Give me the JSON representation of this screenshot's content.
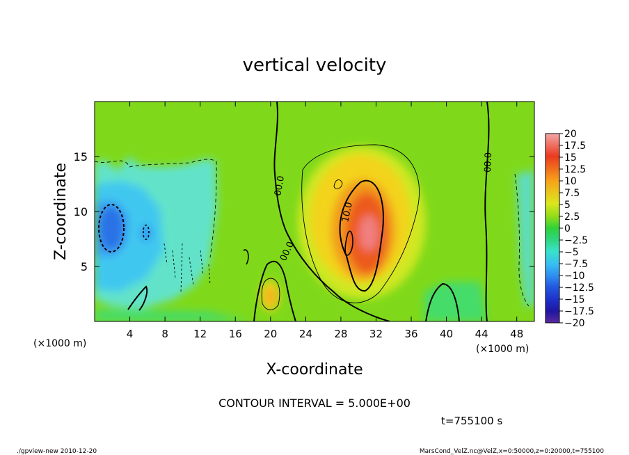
{
  "chart_data": {
    "type": "heatmap",
    "title": "vertical velocity",
    "xlabel": "X-coordinate",
    "ylabel": "Z-coordinate",
    "x_unit_left": "(×1000 m)",
    "x_unit_right": "(×1000 m)",
    "xlim": [
      0,
      50
    ],
    "ylim": [
      0,
      20
    ],
    "x_ticks": [
      4,
      8,
      12,
      16,
      20,
      24,
      28,
      32,
      36,
      40,
      44,
      48
    ],
    "y_ticks": [
      5,
      10,
      15
    ],
    "contour_interval_text": "CONTOUR INTERVAL = 5.000E+00",
    "time_text": "t=755100 s",
    "colorbar": {
      "levels": [
        "20",
        "17.5",
        "15",
        "12.5",
        "10",
        "7.5",
        "5",
        "2.5",
        "0",
        "−2.5",
        "−5",
        "−7.5",
        "−10",
        "−12.5",
        "−15",
        "−17.5",
        "−20"
      ],
      "colors": [
        "#f4a6a6",
        "#f07f7f",
        "#eb3a1f",
        "#f06a10",
        "#f7a21a",
        "#f7cf1d",
        "#dbe81c",
        "#8edc1a",
        "#2fd23a",
        "#2fd57f",
        "#38e3c8",
        "#37bff2",
        "#2f8ff0",
        "#2358e0",
        "#1d2fc8",
        "#2016a0",
        "#5a2aa0"
      ]
    },
    "contour_labels": [
      "00.0",
      "00.0",
      "00.0",
      "10.0"
    ],
    "features": [
      {
        "name": "updraft core",
        "x": 31,
        "z": 8,
        "value": 17
      },
      {
        "name": "updraft halo",
        "x": 30,
        "z": 10,
        "value": 5
      },
      {
        "name": "downdraft core",
        "x": 1.8,
        "z": 9,
        "value": -11
      },
      {
        "name": "downdraft region",
        "x": 6,
        "z": 9,
        "value": -6
      },
      {
        "name": "weak updraft",
        "x": 20,
        "z": 2.5,
        "value": 7
      }
    ]
  },
  "footer": {
    "left": "./gpview-new 2010-12-20",
    "right": "MarsCond_VelZ.nc@VelZ,x=0:50000,z=0:20000,t=755100"
  }
}
